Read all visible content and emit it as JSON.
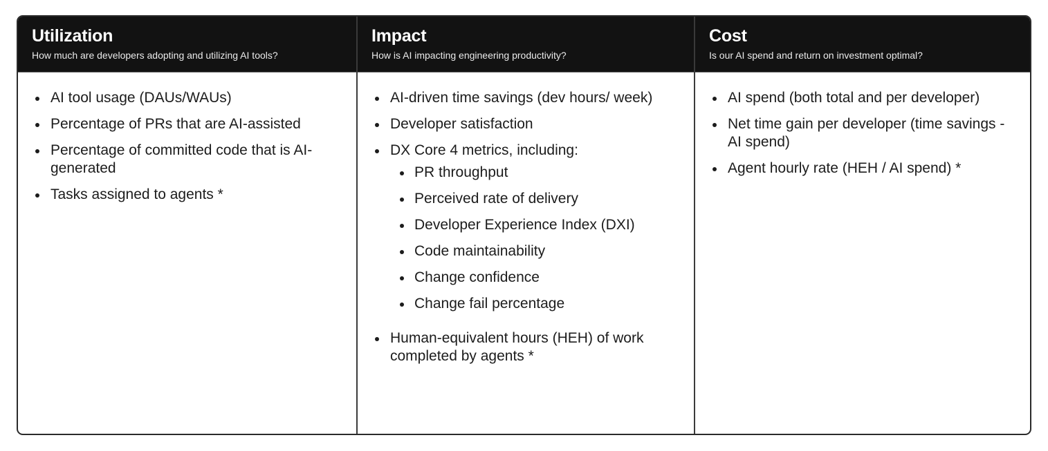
{
  "columns": [
    {
      "title": "Utilization",
      "subtitle": "How much are developers adopting and utilizing AI tools?",
      "items": [
        {
          "label": "AI tool usage (DAUs/WAUs)"
        },
        {
          "label": "Percentage of PRs that are AI-assisted"
        },
        {
          "label": "Percentage of committed code that is AI-generated"
        },
        {
          "label": "Tasks assigned to agents *"
        }
      ]
    },
    {
      "title": "Impact",
      "subtitle": "How is AI impacting engineering productivity?",
      "items": [
        {
          "label": "AI-driven time savings (dev hours/ week)"
        },
        {
          "label": "Developer satisfaction"
        },
        {
          "label": "DX Core 4 metrics, including:",
          "subitems": [
            "PR throughput",
            "Perceived rate of delivery",
            "Developer Experience Index (DXI)",
            "Code maintainability",
            "Change confidence",
            "Change fail percentage"
          ]
        },
        {
          "label": "Human-equivalent hours (HEH) of work completed by agents *"
        }
      ]
    },
    {
      "title": "Cost",
      "subtitle": "Is our AI spend and return on investment optimal?",
      "items": [
        {
          "label": "AI spend (both total and per developer)"
        },
        {
          "label": "Net time gain per developer (time savings - AI spend)"
        },
        {
          "label": "Agent hourly rate (HEH / AI spend) *"
        }
      ]
    }
  ]
}
